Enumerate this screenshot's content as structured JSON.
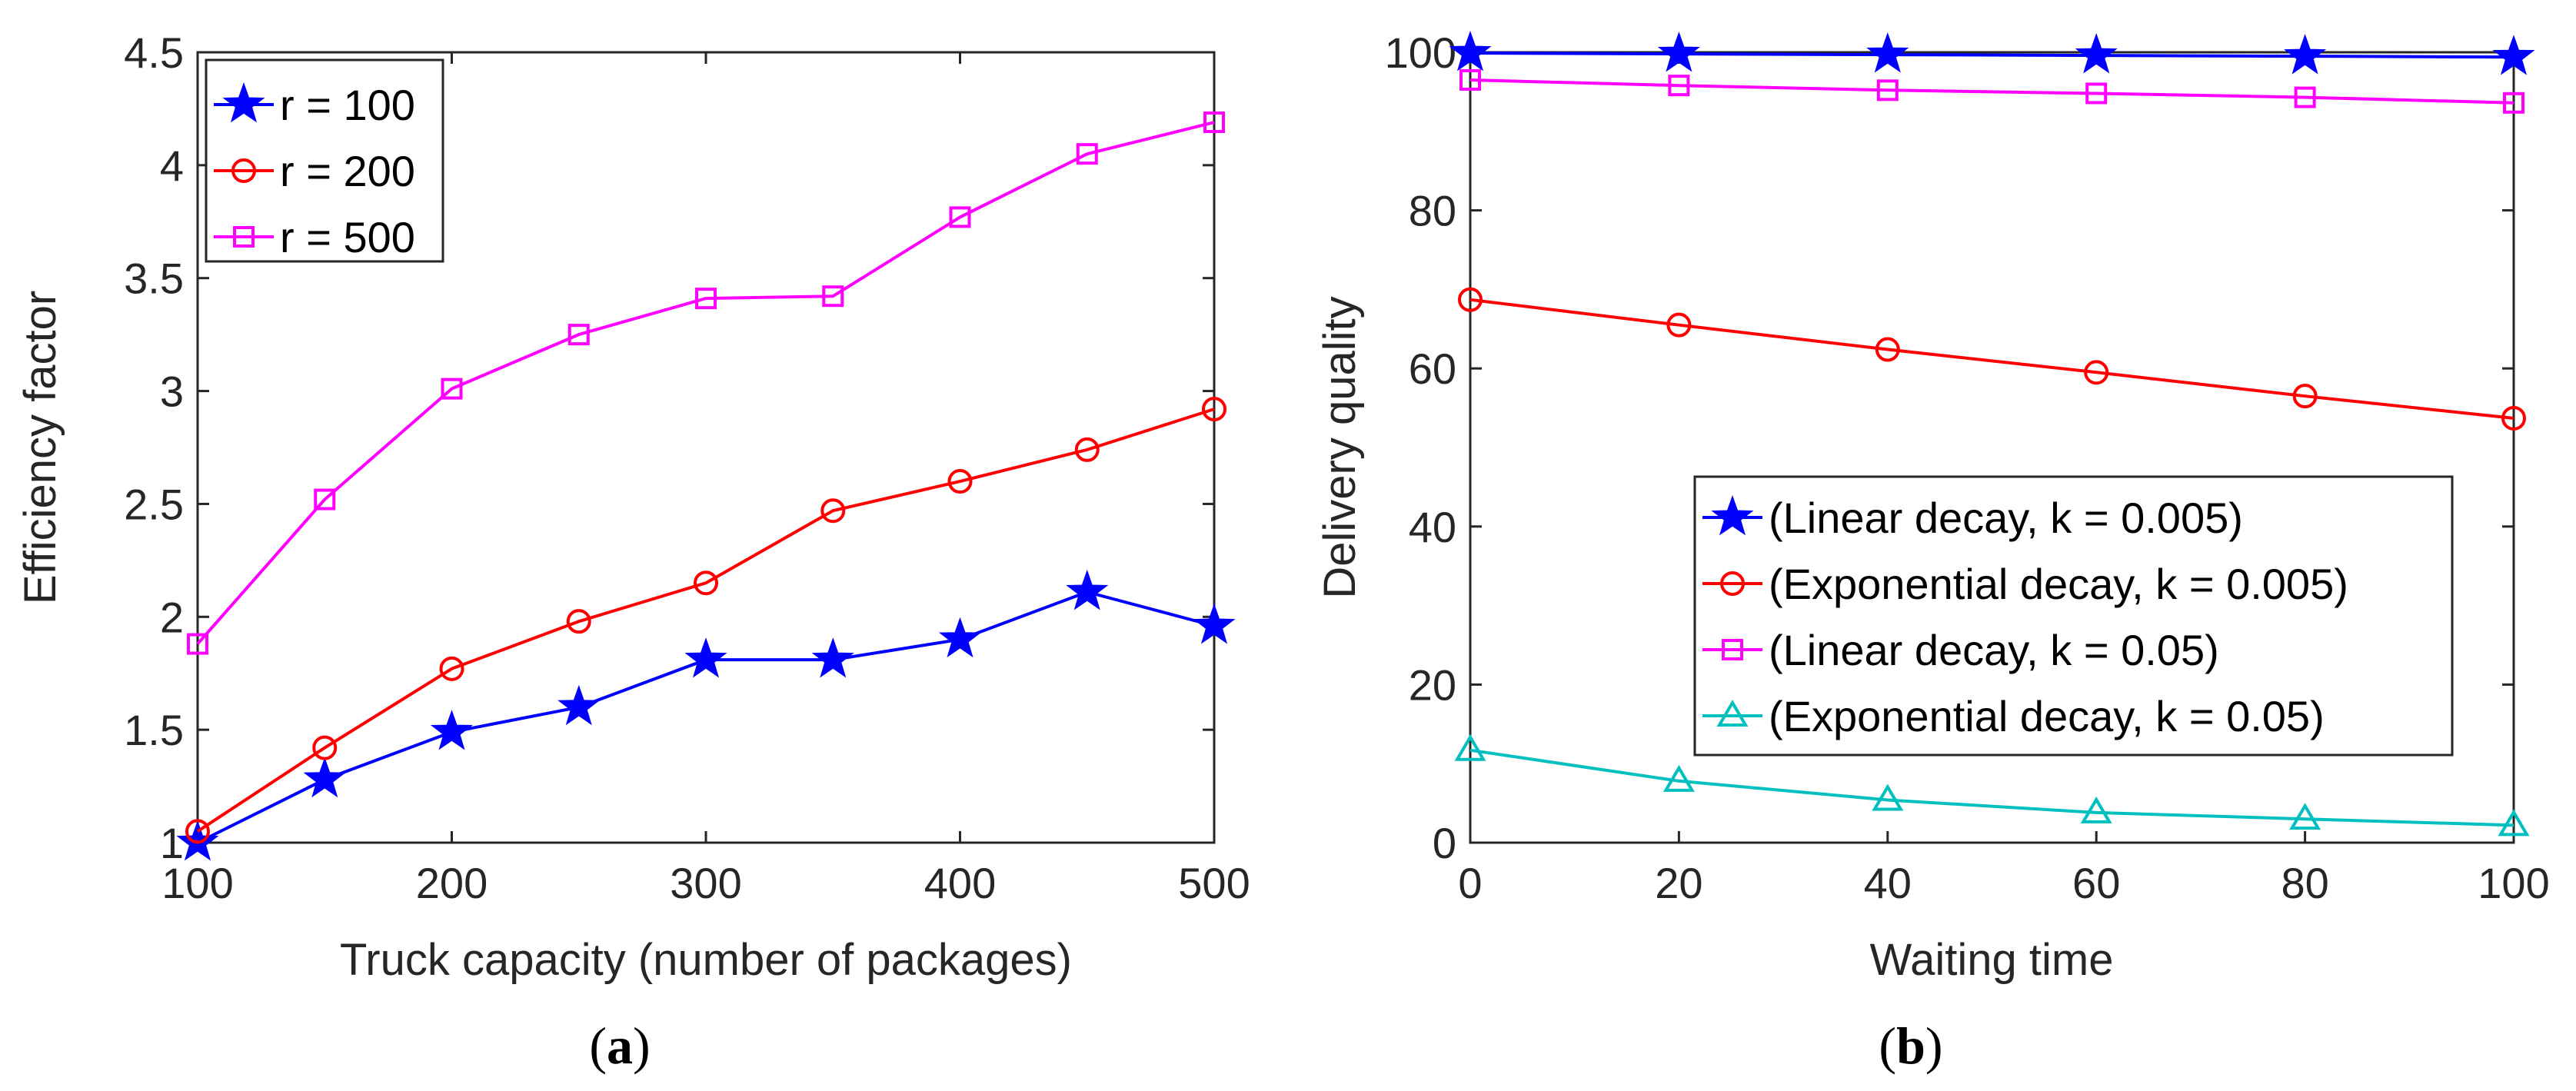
{
  "chart_data": [
    {
      "type": "line",
      "caption_open": "(",
      "caption_letter": "a",
      "caption_close": ")",
      "xlabel": "Truck capacity (number of packages)",
      "ylabel": "Efficiency factor",
      "xlim": [
        100,
        500
      ],
      "ylim": [
        1,
        4.5
      ],
      "xticks": [
        100,
        200,
        300,
        400,
        500
      ],
      "xtick_labels": [
        "100",
        "200",
        "300",
        "400",
        "500"
      ],
      "yticks": [
        1,
        1.5,
        2,
        2.5,
        3,
        3.5,
        4,
        4.5
      ],
      "ytick_labels": [
        "1",
        "1.5",
        "2",
        "2.5",
        "3",
        "3.5",
        "4",
        "4.5"
      ],
      "legend_position": "top-left",
      "x": [
        100,
        150,
        200,
        250,
        300,
        350,
        400,
        450,
        500
      ],
      "series": [
        {
          "name": "r = 100",
          "color": "#0000ff",
          "marker": "star",
          "values": [
            1.0,
            1.28,
            1.49,
            1.6,
            1.81,
            1.81,
            1.9,
            2.11,
            1.96
          ]
        },
        {
          "name": "r = 200",
          "color": "#ff0000",
          "marker": "circle",
          "values": [
            1.05,
            1.42,
            1.77,
            1.98,
            2.15,
            2.47,
            2.6,
            2.74,
            2.92
          ]
        },
        {
          "name": "r = 500",
          "color": "#ff00ff",
          "marker": "square",
          "values": [
            1.88,
            2.52,
            3.01,
            3.25,
            3.41,
            3.42,
            3.77,
            4.05,
            4.19
          ]
        }
      ]
    },
    {
      "type": "line",
      "caption_open": "(",
      "caption_letter": "b",
      "caption_close": ")",
      "xlabel": "Waiting time",
      "ylabel": "Delivery quality",
      "xlim": [
        0,
        100
      ],
      "ylim": [
        0,
        100
      ],
      "xticks": [
        0,
        20,
        40,
        60,
        80,
        100
      ],
      "xtick_labels": [
        "0",
        "20",
        "40",
        "60",
        "80",
        "100"
      ],
      "yticks": [
        0,
        20,
        40,
        60,
        80,
        100
      ],
      "ytick_labels": [
        "0",
        "20",
        "40",
        "60",
        "80",
        "100"
      ],
      "legend_position": "center-right",
      "x": [
        0,
        20,
        40,
        60,
        80,
        100
      ],
      "series": [
        {
          "name": "(Linear decay, k = 0.005)",
          "color": "#0000ff",
          "marker": "star",
          "values": [
            99.9,
            99.8,
            99.7,
            99.6,
            99.5,
            99.4
          ]
        },
        {
          "name": "(Exponential decay, k = 0.005)",
          "color": "#ff0000",
          "marker": "circle",
          "values": [
            68.7,
            65.5,
            62.4,
            59.5,
            56.5,
            53.7
          ]
        },
        {
          "name": "(Linear decay, k = 0.05)",
          "color": "#ff00ff",
          "marker": "square",
          "values": [
            96.5,
            95.8,
            95.2,
            94.8,
            94.3,
            93.6
          ]
        },
        {
          "name": "(Exponential decay, k = 0.05)",
          "color": "#00bfbf",
          "marker": "triangle",
          "values": [
            11.7,
            7.8,
            5.4,
            3.8,
            3.0,
            2.2
          ]
        }
      ]
    }
  ]
}
